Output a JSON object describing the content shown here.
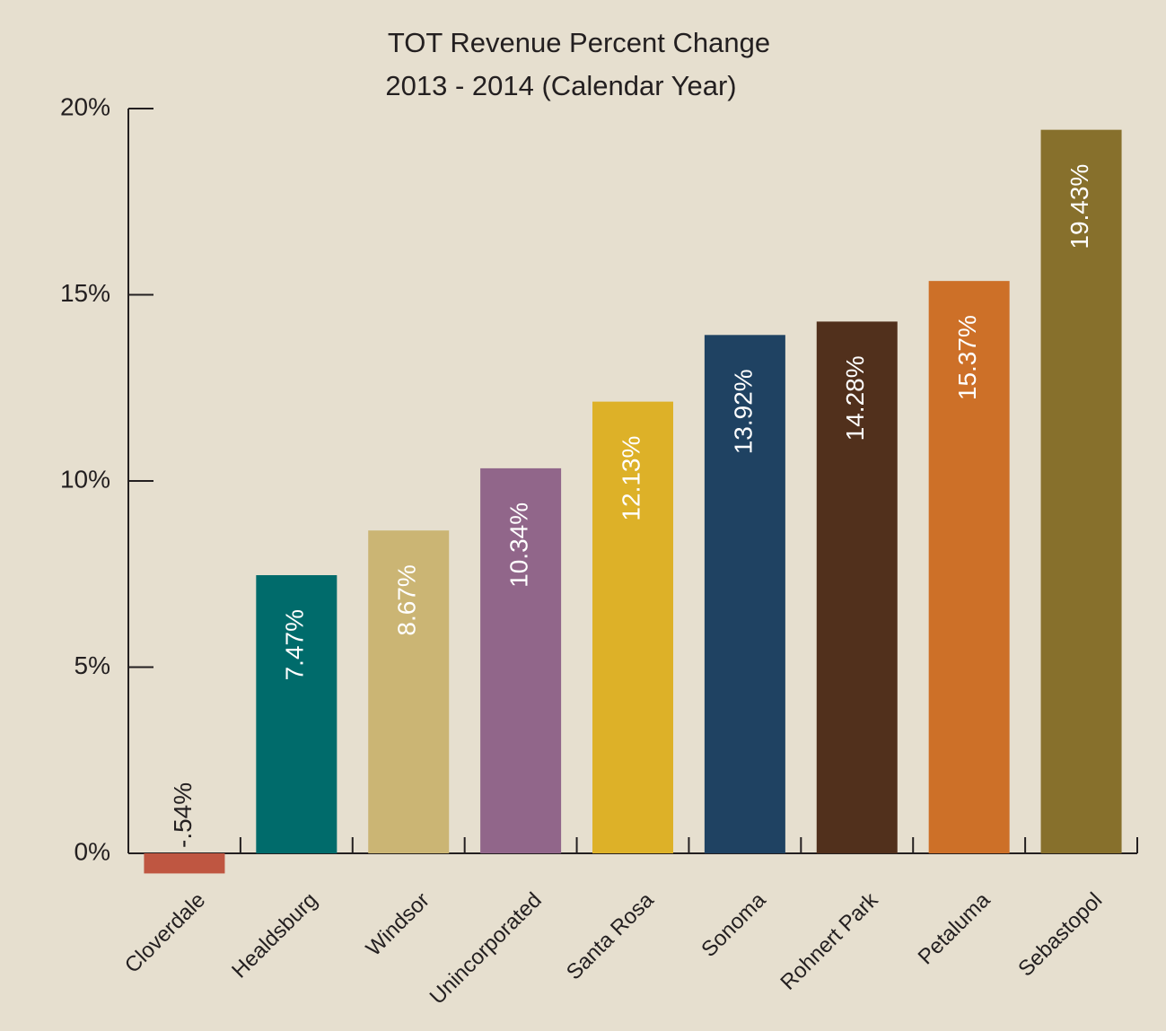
{
  "chart_data": {
    "type": "bar",
    "title": "TOT Revenue Percent Change",
    "subtitle": "2013 - 2014 (Calendar Year)",
    "categories": [
      "Cloverdale",
      "Healdsburg",
      "Windsor",
      "Unincorporated",
      "Santa Rosa",
      "Sonoma",
      "Rohnert Park",
      "Petaluma",
      "Sebastopol"
    ],
    "values": [
      -0.54,
      7.47,
      8.67,
      10.34,
      12.13,
      13.92,
      14.28,
      15.37,
      19.43
    ],
    "value_labels": [
      "-.54%",
      "7.47%",
      "8.67%",
      "10.34%",
      "12.13%",
      "13.92%",
      "14.28%",
      "15.37%",
      "19.43%"
    ],
    "colors": [
      "#bf5641",
      "#006b6b",
      "#cbb574",
      "#91668a",
      "#ddb128",
      "#1f4262",
      "#51301c",
      "#cd7028",
      "#87702c"
    ],
    "ylim": [
      0,
      20
    ],
    "yticks": [
      {
        "value": 0,
        "label": "0%"
      },
      {
        "value": 5,
        "label": "5%"
      },
      {
        "value": 10,
        "label": "10%"
      },
      {
        "value": 15,
        "label": "15%"
      },
      {
        "value": 20,
        "label": "20%"
      }
    ]
  }
}
